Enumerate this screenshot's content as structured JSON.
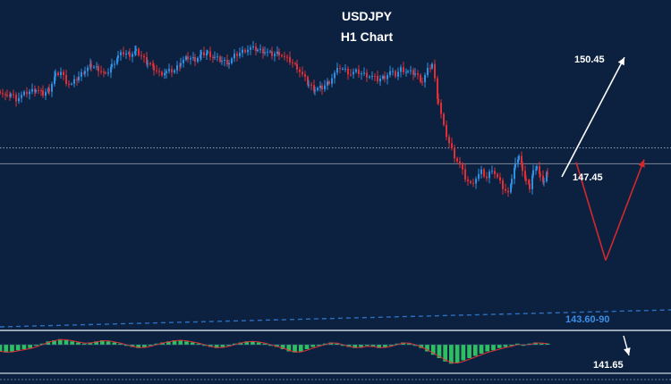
{
  "chart_data": {
    "type": "candlestick",
    "title": "USDJPY",
    "subtitle": "H1 Chart",
    "symbol": "USDJPY",
    "timeframe": "H1",
    "close_path": [
      [
        0,
        149.25
      ],
      [
        8,
        149.05
      ],
      [
        12,
        149.15
      ],
      [
        18,
        149.0
      ],
      [
        24,
        149.1
      ],
      [
        30,
        149.2
      ],
      [
        40,
        149.3
      ],
      [
        48,
        149.15
      ],
      [
        55,
        149.3
      ],
      [
        62,
        149.75
      ],
      [
        68,
        149.85
      ],
      [
        74,
        149.55
      ],
      [
        80,
        149.45
      ],
      [
        88,
        149.7
      ],
      [
        95,
        149.9
      ],
      [
        102,
        150.05
      ],
      [
        110,
        149.95
      ],
      [
        118,
        149.75
      ],
      [
        125,
        150.05
      ],
      [
        132,
        150.35
      ],
      [
        138,
        150.45
      ],
      [
        145,
        150.4
      ],
      [
        152,
        150.5
      ],
      [
        158,
        150.35
      ],
      [
        165,
        150.15
      ],
      [
        172,
        149.95
      ],
      [
        178,
        149.8
      ],
      [
        186,
        149.85
      ],
      [
        195,
        149.9
      ],
      [
        202,
        150.15
      ],
      [
        210,
        150.3
      ],
      [
        218,
        150.25
      ],
      [
        225,
        150.4
      ],
      [
        232,
        150.45
      ],
      [
        240,
        150.3
      ],
      [
        248,
        150.2
      ],
      [
        256,
        150.15
      ],
      [
        262,
        150.35
      ],
      [
        268,
        150.45
      ],
      [
        274,
        150.55
      ],
      [
        280,
        150.6
      ],
      [
        288,
        150.55
      ],
      [
        296,
        150.5
      ],
      [
        304,
        150.4
      ],
      [
        312,
        150.45
      ],
      [
        318,
        150.3
      ],
      [
        324,
        150.2
      ],
      [
        332,
        150.0
      ],
      [
        338,
        149.75
      ],
      [
        345,
        149.45
      ],
      [
        352,
        149.3
      ],
      [
        360,
        149.35
      ],
      [
        368,
        149.55
      ],
      [
        374,
        149.8
      ],
      [
        380,
        150.0
      ],
      [
        386,
        149.9
      ],
      [
        392,
        149.8
      ],
      [
        398,
        149.85
      ],
      [
        404,
        149.8
      ],
      [
        410,
        149.75
      ],
      [
        416,
        149.7
      ],
      [
        422,
        149.6
      ],
      [
        430,
        149.7
      ],
      [
        436,
        149.85
      ],
      [
        442,
        149.75
      ],
      [
        448,
        149.95
      ],
      [
        456,
        149.85
      ],
      [
        464,
        149.8
      ],
      [
        472,
        149.55
      ],
      [
        478,
        149.9
      ],
      [
        483,
        150.1
      ],
      [
        486,
        149.6
      ],
      [
        490,
        148.9
      ],
      [
        496,
        148.1
      ],
      [
        502,
        147.6
      ],
      [
        508,
        147.2
      ],
      [
        514,
        146.9
      ],
      [
        520,
        146.5
      ],
      [
        526,
        146.3
      ],
      [
        532,
        146.5
      ],
      [
        538,
        146.7
      ],
      [
        544,
        146.5
      ],
      [
        550,
        146.8
      ],
      [
        556,
        146.5
      ],
      [
        562,
        146.2
      ],
      [
        568,
        146.0
      ],
      [
        572,
        146.5
      ],
      [
        576,
        146.9
      ],
      [
        580,
        147.2
      ],
      [
        584,
        146.8
      ],
      [
        588,
        146.4
      ],
      [
        592,
        146.2
      ],
      [
        596,
        146.7
      ],
      [
        600,
        146.9
      ],
      [
        604,
        146.5
      ],
      [
        608,
        146.4
      ],
      [
        612,
        146.7
      ]
    ],
    "levels": [
      {
        "label": "150.45",
        "value": 150.45,
        "line": false
      },
      {
        "label": "147.45",
        "value": 147.45,
        "line": "dotted"
      },
      {
        "label": "143.60-90",
        "value": 143.75,
        "line": "dashed"
      },
      {
        "label": "141.65",
        "value": 141.65,
        "line": false
      }
    ],
    "horizontal_lines": [
      {
        "value": 147.45,
        "style": "dotted",
        "color": "#9aa7b8"
      },
      {
        "value": 146.95,
        "style": "solid",
        "color": "#7c8798"
      }
    ],
    "forecast": {
      "bullish_target": 150.45,
      "decline_then_recover": [
        147.0,
        143.9,
        147.0
      ],
      "bearish_target": 141.65
    },
    "indicator": {
      "type": "histogram-oscillator",
      "baseline": 0,
      "values": [
        -6,
        -7,
        -6,
        -5,
        -4,
        -3,
        -1,
        1,
        3,
        4,
        5,
        4,
        3,
        2,
        1,
        2,
        3,
        4,
        3,
        2,
        1,
        -1,
        -2,
        -3,
        -2,
        -1,
        1,
        2,
        3,
        4,
        4,
        3,
        2,
        1,
        -1,
        -2,
        -3,
        -2,
        -1,
        1,
        2,
        3,
        3,
        2,
        1,
        -1,
        -2,
        -4,
        -6,
        -7,
        -6,
        -4,
        -2,
        -1,
        1,
        2,
        1,
        -1,
        -2,
        -3,
        -2,
        -1,
        -2,
        -3,
        -2,
        -1,
        1,
        2,
        1,
        -1,
        -3,
        -6,
        -9,
        -12,
        -15,
        -17,
        -16,
        -14,
        -12,
        -10,
        -8,
        -6,
        -5,
        -3,
        -2,
        -1,
        1,
        -1,
        1,
        2,
        1,
        1
      ]
    },
    "colors": {
      "background": "#0c2140",
      "up_candle": "#2f8fe0",
      "down_candle": "#e03036",
      "histogram": "#2fbf63",
      "signal_line": "#e03036",
      "bullish_arrow": "#ffffff",
      "bearish_arrow": "#d3282e",
      "support_line": "#2d6fc0"
    },
    "grid": false
  }
}
